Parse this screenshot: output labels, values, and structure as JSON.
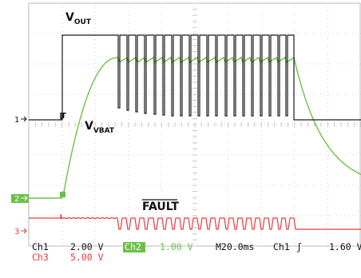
{
  "chart_data": {
    "type": "line",
    "title": "",
    "xlabel": "",
    "ylabel": "",
    "timebase": "M20.0ms",
    "grid": true,
    "annotations": [
      {
        "main": "V",
        "sub": "OUT"
      },
      {
        "main": "V",
        "sub": "VBAT"
      },
      {
        "main": "FAULT",
        "overline": true
      }
    ],
    "channel_markers": [
      "1",
      "2",
      "3"
    ],
    "trigger_marker": "T",
    "series": [
      {
        "name": "Ch1",
        "scale": "2.00 V",
        "color": "#1a1a1a"
      },
      {
        "name": "Ch2",
        "scale": "1.00 V",
        "color": "#6cc04a"
      },
      {
        "name": "Ch3",
        "scale": "5.00 V",
        "color": "#ec3a3a"
      }
    ],
    "trigger": {
      "channel": "Ch1",
      "slope_symbol": "ʃ",
      "level": "1.60 V"
    }
  }
}
